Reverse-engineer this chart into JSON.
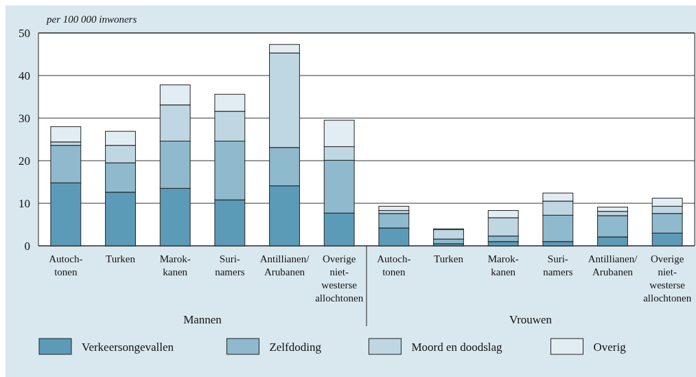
{
  "chart_data": {
    "type": "bar",
    "stacked": true,
    "ylabel": "per 100 000 inwoners",
    "categories": [
      "Autoch-\ntonen",
      "Turken",
      "Marok-\nkanen",
      "Suri-\nnamers",
      "Antillianen/\nArubanen",
      "Overige\nniet-\nwesterse\nallochtonen",
      "Autoch-\ntonen",
      "Turken",
      "Marok-\nkanen",
      "Suri-\nnamers",
      "Antillianen/\nArubanen",
      "Overige\nniet-\nwesterse\nallochtonen"
    ],
    "series": [
      {
        "name": "Verkeersongevallen",
        "color": "#5b9bb8",
        "values": [
          14.8,
          12.6,
          13.5,
          10.8,
          14.1,
          7.7,
          4.2,
          0.5,
          1.0,
          1.0,
          2.1,
          3.0
        ]
      },
      {
        "name": "Zelfdoding",
        "color": "#8fb9cd",
        "values": [
          8.8,
          6.9,
          11.1,
          13.8,
          9.0,
          12.4,
          3.4,
          1.1,
          1.3,
          6.2,
          5.0,
          4.6
        ]
      },
      {
        "name": "Moord en doodslag",
        "color": "#bfd7e3",
        "values": [
          0.8,
          4.1,
          8.5,
          7.0,
          22.2,
          3.2,
          0.7,
          2.2,
          4.3,
          3.3,
          1.0,
          1.7
        ]
      },
      {
        "name": "Overig",
        "color": "#e2edf3",
        "values": [
          3.6,
          3.3,
          4.7,
          4.0,
          2.0,
          6.2,
          1.0,
          0.2,
          1.7,
          1.9,
          1.0,
          1.9
        ]
      }
    ],
    "annotations": [
      "Mannen",
      "Vrouwen"
    ],
    "ylim": [
      0,
      50
    ],
    "yticks": [
      0,
      10,
      20,
      30,
      40,
      50
    ],
    "grid": "y",
    "legend": "bottom"
  }
}
